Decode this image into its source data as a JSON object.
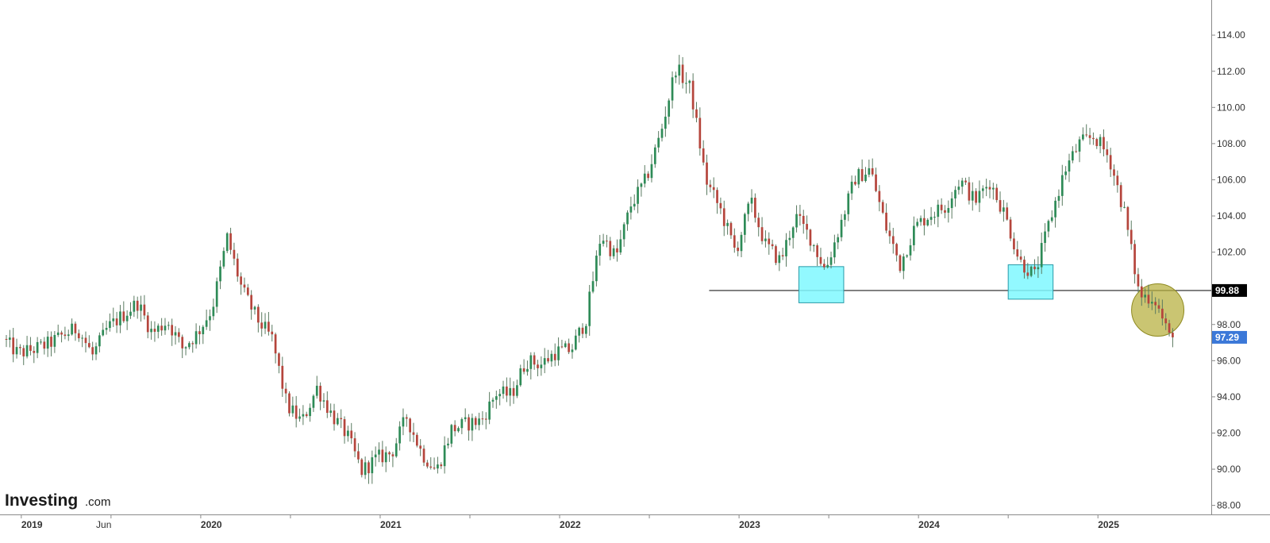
{
  "brand": {
    "name": "Investing",
    "suffix": ".com"
  },
  "colors": {
    "up": "#2e8b57",
    "down": "#b5453c",
    "wick": "#5a7a60",
    "box_fill": "#7ff8ff",
    "box_stroke": "#2a9aa8",
    "circle_fill": "#b6ae3c",
    "last_price_badge": "#3b78d8",
    "level_badge": "#000000"
  },
  "chart_data": {
    "type": "candlestick",
    "timeframe": "weekly",
    "y_range": [
      87.5,
      115.5
    ],
    "y_ticks": [
      "114.00",
      "112.00",
      "110.00",
      "108.00",
      "106.00",
      "104.00",
      "102.00",
      "100.00",
      "98.00",
      "96.00",
      "94.00",
      "92.00",
      "90.00",
      "88.00"
    ],
    "x_labels": [
      {
        "text": "2019",
        "date": "2019-01",
        "major": true
      },
      {
        "text": "Jun",
        "date": "2019-06",
        "major": false
      },
      {
        "text": "2020",
        "date": "2020-01",
        "major": true
      },
      {
        "text": "2021",
        "date": "2021-01",
        "major": true
      },
      {
        "text": "2022",
        "date": "2022-01",
        "major": true
      },
      {
        "text": "2023",
        "date": "2023-01",
        "major": true
      },
      {
        "text": "2024",
        "date": "2024-01",
        "major": true
      },
      {
        "text": "2025",
        "date": "2025-01",
        "major": true
      }
    ],
    "price_path": [
      [
        "2018-12",
        97.2
      ],
      [
        "2019-01",
        96.4
      ],
      [
        "2019-02",
        96.6
      ],
      [
        "2019-03",
        96.9
      ],
      [
        "2019-04",
        97.4
      ],
      [
        "2019-05",
        97.8
      ],
      [
        "2019-06",
        96.3
      ],
      [
        "2019-07",
        97.8
      ],
      [
        "2019-08",
        98.5
      ],
      [
        "2019-09",
        99.2
      ],
      [
        "2019-10",
        97.5
      ],
      [
        "2019-11",
        98.2
      ],
      [
        "2019-12",
        96.7
      ],
      [
        "2020-01",
        97.5
      ],
      [
        "2020-02",
        98.9
      ],
      [
        "2020-03",
        102.8
      ],
      [
        "2020-04",
        99.9
      ],
      [
        "2020-05",
        98.3
      ],
      [
        "2020-06",
        97.2
      ],
      [
        "2020-07",
        93.5
      ],
      [
        "2020-08",
        92.6
      ],
      [
        "2020-09",
        94.5
      ],
      [
        "2020-10",
        93.0
      ],
      [
        "2020-11",
        91.9
      ],
      [
        "2020-12",
        89.9
      ],
      [
        "2021-01",
        90.6
      ],
      [
        "2021-02",
        90.9
      ],
      [
        "2021-03",
        92.9
      ],
      [
        "2021-04",
        90.9
      ],
      [
        "2021-05",
        89.9
      ],
      [
        "2021-06",
        92.2
      ],
      [
        "2021-07",
        92.5
      ],
      [
        "2021-08",
        92.7
      ],
      [
        "2021-09",
        94.2
      ],
      [
        "2021-10",
        94.1
      ],
      [
        "2021-11",
        96.0
      ],
      [
        "2021-12",
        95.8
      ],
      [
        "2022-01",
        96.5
      ],
      [
        "2022-02",
        96.6
      ],
      [
        "2022-03",
        98.3
      ],
      [
        "2022-04",
        103.0
      ],
      [
        "2022-05",
        101.7
      ],
      [
        "2022-06",
        104.6
      ],
      [
        "2022-07",
        106.0
      ],
      [
        "2022-08",
        108.6
      ],
      [
        "2022-09",
        112.2
      ],
      [
        "2022-10",
        111.0
      ],
      [
        "2022-11",
        106.0
      ],
      [
        "2022-12",
        104.3
      ],
      [
        "2023-01",
        102.0
      ],
      [
        "2023-02",
        104.8
      ],
      [
        "2023-03",
        102.4
      ],
      [
        "2023-04",
        101.5
      ],
      [
        "2023-05",
        104.0
      ],
      [
        "2023-06",
        102.8
      ],
      [
        "2023-07",
        101.0
      ],
      [
        "2023-08",
        103.5
      ],
      [
        "2023-09",
        106.1
      ],
      [
        "2023-10",
        106.6
      ],
      [
        "2023-11",
        103.5
      ],
      [
        "2023-12",
        101.3
      ],
      [
        "2024-01",
        103.4
      ],
      [
        "2024-02",
        104.1
      ],
      [
        "2024-03",
        104.5
      ],
      [
        "2024-04",
        106.0
      ],
      [
        "2024-05",
        104.8
      ],
      [
        "2024-06",
        105.9
      ],
      [
        "2024-07",
        104.1
      ],
      [
        "2024-08",
        101.5
      ],
      [
        "2024-09",
        100.7
      ],
      [
        "2024-10",
        103.7
      ],
      [
        "2024-11",
        106.5
      ],
      [
        "2024-12",
        108.0
      ],
      [
        "2025-01",
        108.4
      ],
      [
        "2025-02",
        107.2
      ],
      [
        "2025-03",
        104.2
      ],
      [
        "2025-04",
        99.6
      ],
      [
        "2025-05",
        99.5
      ],
      [
        "2025-06",
        97.3
      ]
    ],
    "annotations": [
      {
        "type": "horizontal-line",
        "value": 99.88,
        "from": "2022-11",
        "to": "2025-07"
      },
      {
        "type": "box",
        "x0": "2023-05",
        "x1": "2023-08",
        "y0": 99.2,
        "y1": 101.2
      },
      {
        "type": "box",
        "x0": "2024-07",
        "x1": "2024-10",
        "y0": 99.4,
        "y1": 101.3
      },
      {
        "type": "circle",
        "center": "2025-05",
        "value": 98.8
      }
    ],
    "price_labels": [
      {
        "text": "99.88",
        "value": 99.88,
        "kind": "level"
      },
      {
        "text": "97.29",
        "value": 97.29,
        "kind": "last"
      }
    ]
  }
}
